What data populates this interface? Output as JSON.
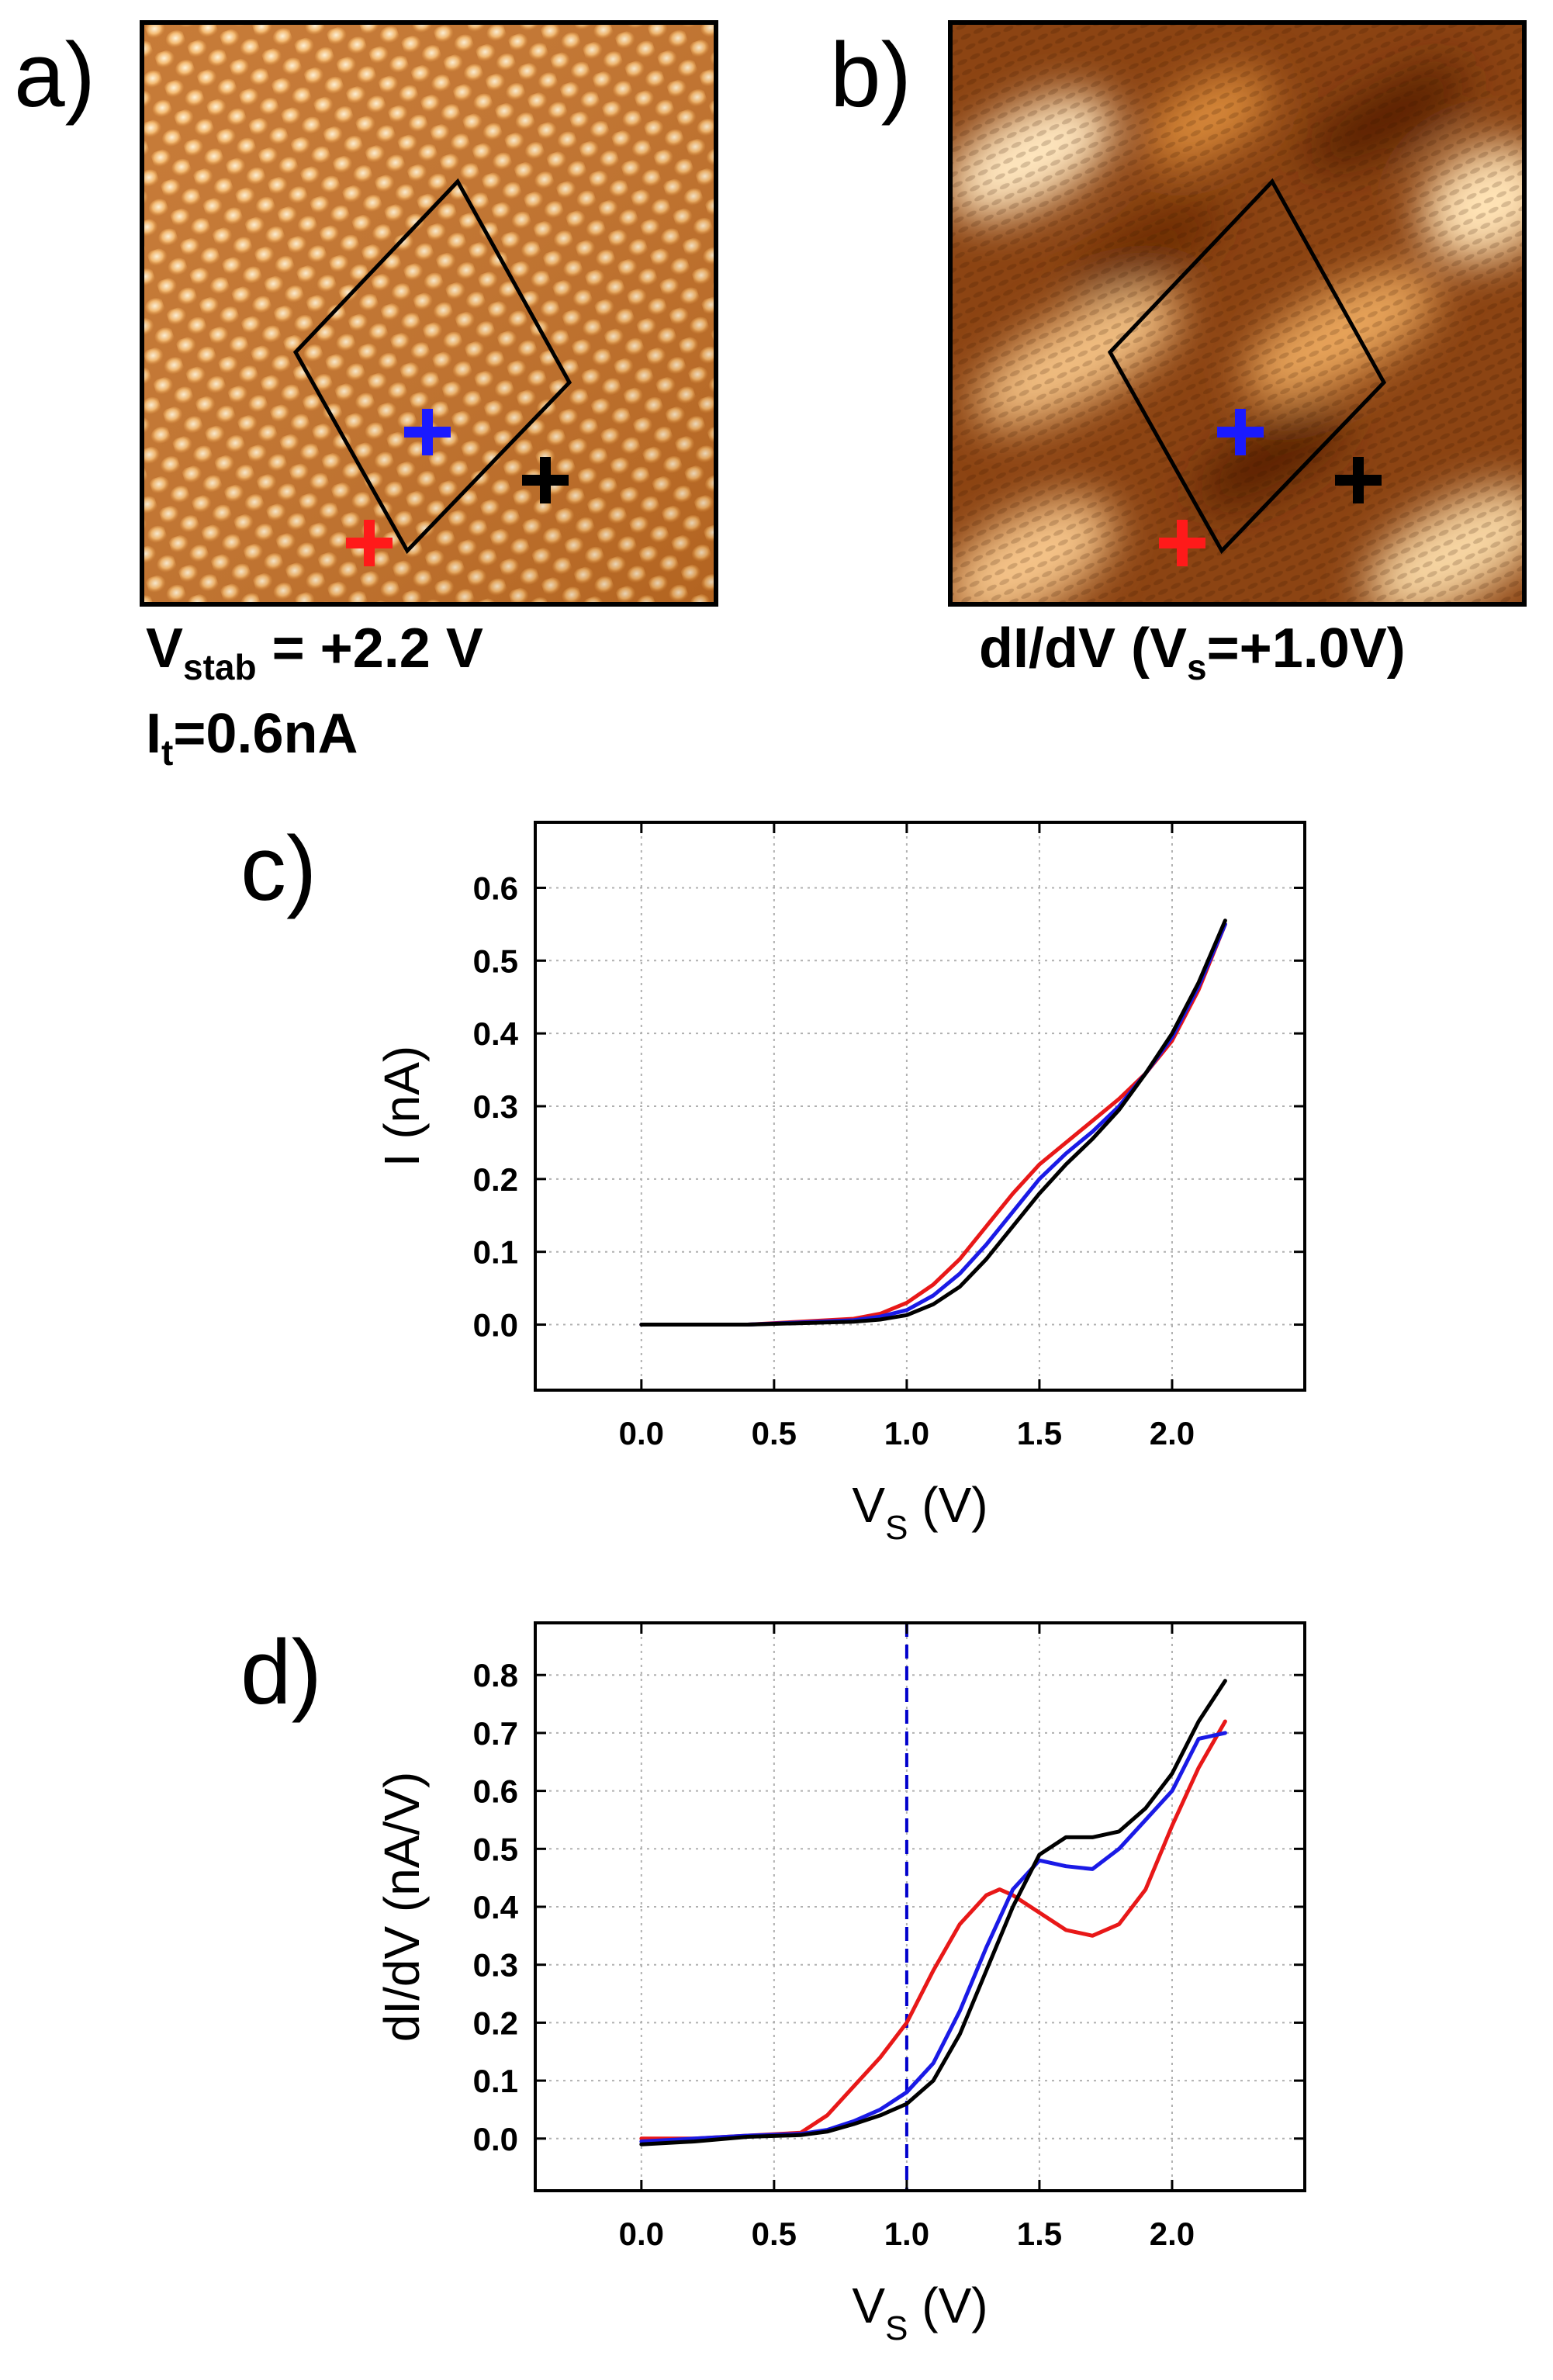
{
  "panels": {
    "a": {
      "letter": "a)",
      "caption_line1": {
        "main": "V",
        "sub": "stab",
        "rest": " = +2.2 V"
      },
      "caption_line2": {
        "main": "I",
        "sub": "t",
        "rest": "=0.6nA"
      }
    },
    "b": {
      "letter": "b)",
      "caption": {
        "pre": "dI/dV (V",
        "sub": "s",
        "post": "=+1.0V)"
      }
    }
  },
  "markers": {
    "red": "#ff1a1a",
    "blue": "#1a1aff",
    "black": "#000000"
  },
  "colors": {
    "stm_dark": "#7a3a0a",
    "stm_mid": "#c8782a",
    "stm_light": "#ffe2b0",
    "grid": "#b0b0b0",
    "guide": "#0000cc"
  },
  "chart_data": [
    {
      "id": "c",
      "letter": "c)",
      "type": "line",
      "xlabel": {
        "main": "V",
        "sub": "S",
        "rest": " (V)"
      },
      "ylabel": "I (nA)",
      "xlim": [
        -0.4,
        2.5
      ],
      "ylim": [
        -0.09,
        0.69
      ],
      "xticks": [
        0.0,
        0.5,
        1.0,
        1.5,
        2.0
      ],
      "xticklabels": [
        "0.0",
        "0.5",
        "1.0",
        "1.5",
        "2.0"
      ],
      "yticks": [
        0.0,
        0.1,
        0.2,
        0.3,
        0.4,
        0.5,
        0.6
      ],
      "yticklabels": [
        "0.0",
        "0.1",
        "0.2",
        "0.3",
        "0.4",
        "0.5",
        "0.6"
      ],
      "grid": true,
      "series": [
        {
          "name": "red",
          "color": "#e81818",
          "x": [
            0.0,
            0.4,
            0.8,
            0.9,
            1.0,
            1.1,
            1.2,
            1.3,
            1.4,
            1.5,
            1.6,
            1.7,
            1.8,
            1.9,
            2.0,
            2.1,
            2.2
          ],
          "y": [
            0.0,
            0.0,
            0.008,
            0.015,
            0.03,
            0.055,
            0.09,
            0.135,
            0.18,
            0.22,
            0.25,
            0.28,
            0.31,
            0.345,
            0.39,
            0.46,
            0.55
          ]
        },
        {
          "name": "blue",
          "color": "#1a1ae6",
          "x": [
            0.0,
            0.4,
            0.8,
            0.9,
            1.0,
            1.1,
            1.2,
            1.3,
            1.4,
            1.5,
            1.6,
            1.7,
            1.8,
            1.9,
            2.0,
            2.1,
            2.2
          ],
          "y": [
            0.0,
            0.0,
            0.006,
            0.011,
            0.02,
            0.04,
            0.07,
            0.11,
            0.155,
            0.2,
            0.235,
            0.265,
            0.3,
            0.345,
            0.395,
            0.465,
            0.55
          ]
        },
        {
          "name": "black",
          "color": "#000000",
          "x": [
            0.0,
            0.4,
            0.8,
            0.9,
            1.0,
            1.1,
            1.2,
            1.3,
            1.4,
            1.5,
            1.6,
            1.7,
            1.8,
            1.9,
            2.0,
            2.1,
            2.2
          ],
          "y": [
            0.0,
            0.0,
            0.004,
            0.007,
            0.013,
            0.028,
            0.052,
            0.09,
            0.135,
            0.18,
            0.22,
            0.255,
            0.295,
            0.345,
            0.4,
            0.47,
            0.555
          ]
        }
      ]
    },
    {
      "id": "d",
      "letter": "d)",
      "type": "line",
      "xlabel": {
        "main": "V",
        "sub": "S",
        "rest": " (V)"
      },
      "ylabel": "dI/dV (nA/V)",
      "xlim": [
        -0.4,
        2.5
      ],
      "ylim": [
        -0.09,
        0.89
      ],
      "xticks": [
        0.0,
        0.5,
        1.0,
        1.5,
        2.0
      ],
      "xticklabels": [
        "0.0",
        "0.5",
        "1.0",
        "1.5",
        "2.0"
      ],
      "yticks": [
        0.0,
        0.1,
        0.2,
        0.3,
        0.4,
        0.5,
        0.6,
        0.7,
        0.8
      ],
      "yticklabels": [
        "0.0",
        "0.1",
        "0.2",
        "0.3",
        "0.4",
        "0.5",
        "0.6",
        "0.7",
        "0.8"
      ],
      "grid": true,
      "vline": {
        "x": 1.0,
        "style": "dashed",
        "color": "#0000cc"
      },
      "series": [
        {
          "name": "red",
          "color": "#e81818",
          "x": [
            0.0,
            0.2,
            0.4,
            0.6,
            0.7,
            0.8,
            0.9,
            1.0,
            1.1,
            1.2,
            1.3,
            1.35,
            1.4,
            1.5,
            1.6,
            1.7,
            1.8,
            1.9,
            2.0,
            2.1,
            2.2
          ],
          "y": [
            0.0,
            0.0,
            0.005,
            0.01,
            0.04,
            0.09,
            0.14,
            0.2,
            0.29,
            0.37,
            0.42,
            0.43,
            0.42,
            0.39,
            0.36,
            0.35,
            0.37,
            0.43,
            0.54,
            0.64,
            0.72
          ]
        },
        {
          "name": "blue",
          "color": "#1a1ae6",
          "x": [
            0.0,
            0.2,
            0.4,
            0.6,
            0.7,
            0.8,
            0.9,
            1.0,
            1.1,
            1.2,
            1.3,
            1.4,
            1.5,
            1.6,
            1.7,
            1.8,
            1.9,
            2.0,
            2.1,
            2.2
          ],
          "y": [
            -0.005,
            0.0,
            0.005,
            0.008,
            0.015,
            0.03,
            0.05,
            0.08,
            0.13,
            0.22,
            0.33,
            0.43,
            0.48,
            0.47,
            0.465,
            0.5,
            0.55,
            0.6,
            0.69,
            0.7
          ]
        },
        {
          "name": "black",
          "color": "#000000",
          "x": [
            0.0,
            0.2,
            0.4,
            0.6,
            0.7,
            0.8,
            0.9,
            1.0,
            1.1,
            1.2,
            1.3,
            1.4,
            1.5,
            1.6,
            1.7,
            1.8,
            1.9,
            2.0,
            2.1,
            2.2
          ],
          "y": [
            -0.01,
            -0.005,
            0.003,
            0.006,
            0.012,
            0.025,
            0.04,
            0.06,
            0.1,
            0.18,
            0.29,
            0.4,
            0.49,
            0.52,
            0.52,
            0.53,
            0.57,
            0.63,
            0.72,
            0.79
          ]
        }
      ]
    }
  ]
}
